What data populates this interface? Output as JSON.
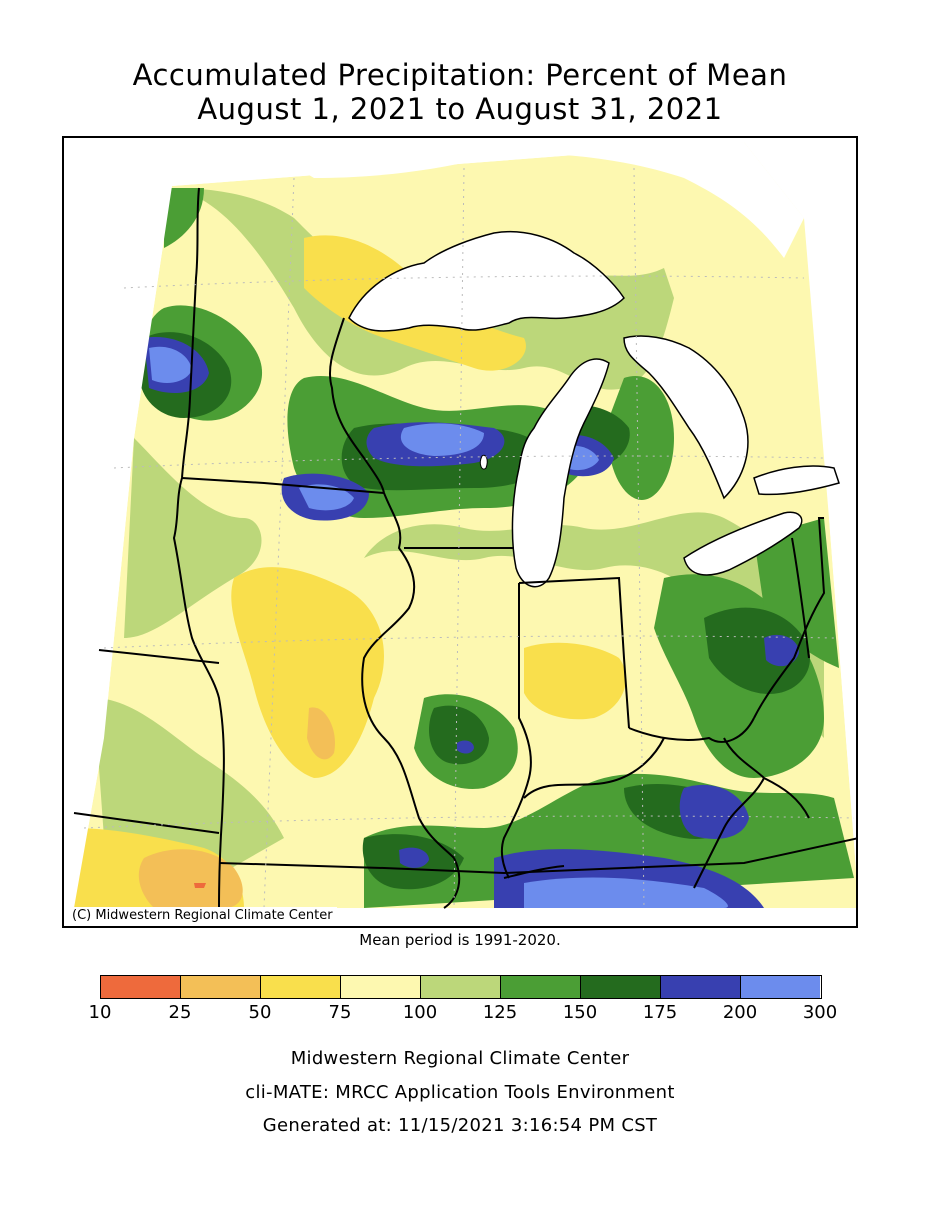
{
  "title": {
    "line1": "Accumulated Precipitation: Percent of Mean",
    "line2": "August 1, 2021 to August 31, 2021"
  },
  "map": {
    "copyright": "(C) Midwestern Regional Climate Center",
    "mean_period": "Mean period is 1991-2020."
  },
  "legend": {
    "colors": [
      "#ee6a3c",
      "#f3bf57",
      "#f9df4c",
      "#fdf8b0",
      "#bcd77a",
      "#4b9e35",
      "#246b1e",
      "#3840b0",
      "#6c8ced"
    ],
    "ticks": [
      "10",
      "25",
      "50",
      "75",
      "100",
      "125",
      "150",
      "175",
      "200",
      "300"
    ]
  },
  "footer": {
    "line1": "Midwestern Regional Climate Center",
    "line2": "cli-MATE: MRCC Application Tools Environment",
    "line3": "Generated at: 11/15/2021 3:16:54 PM CST"
  }
}
